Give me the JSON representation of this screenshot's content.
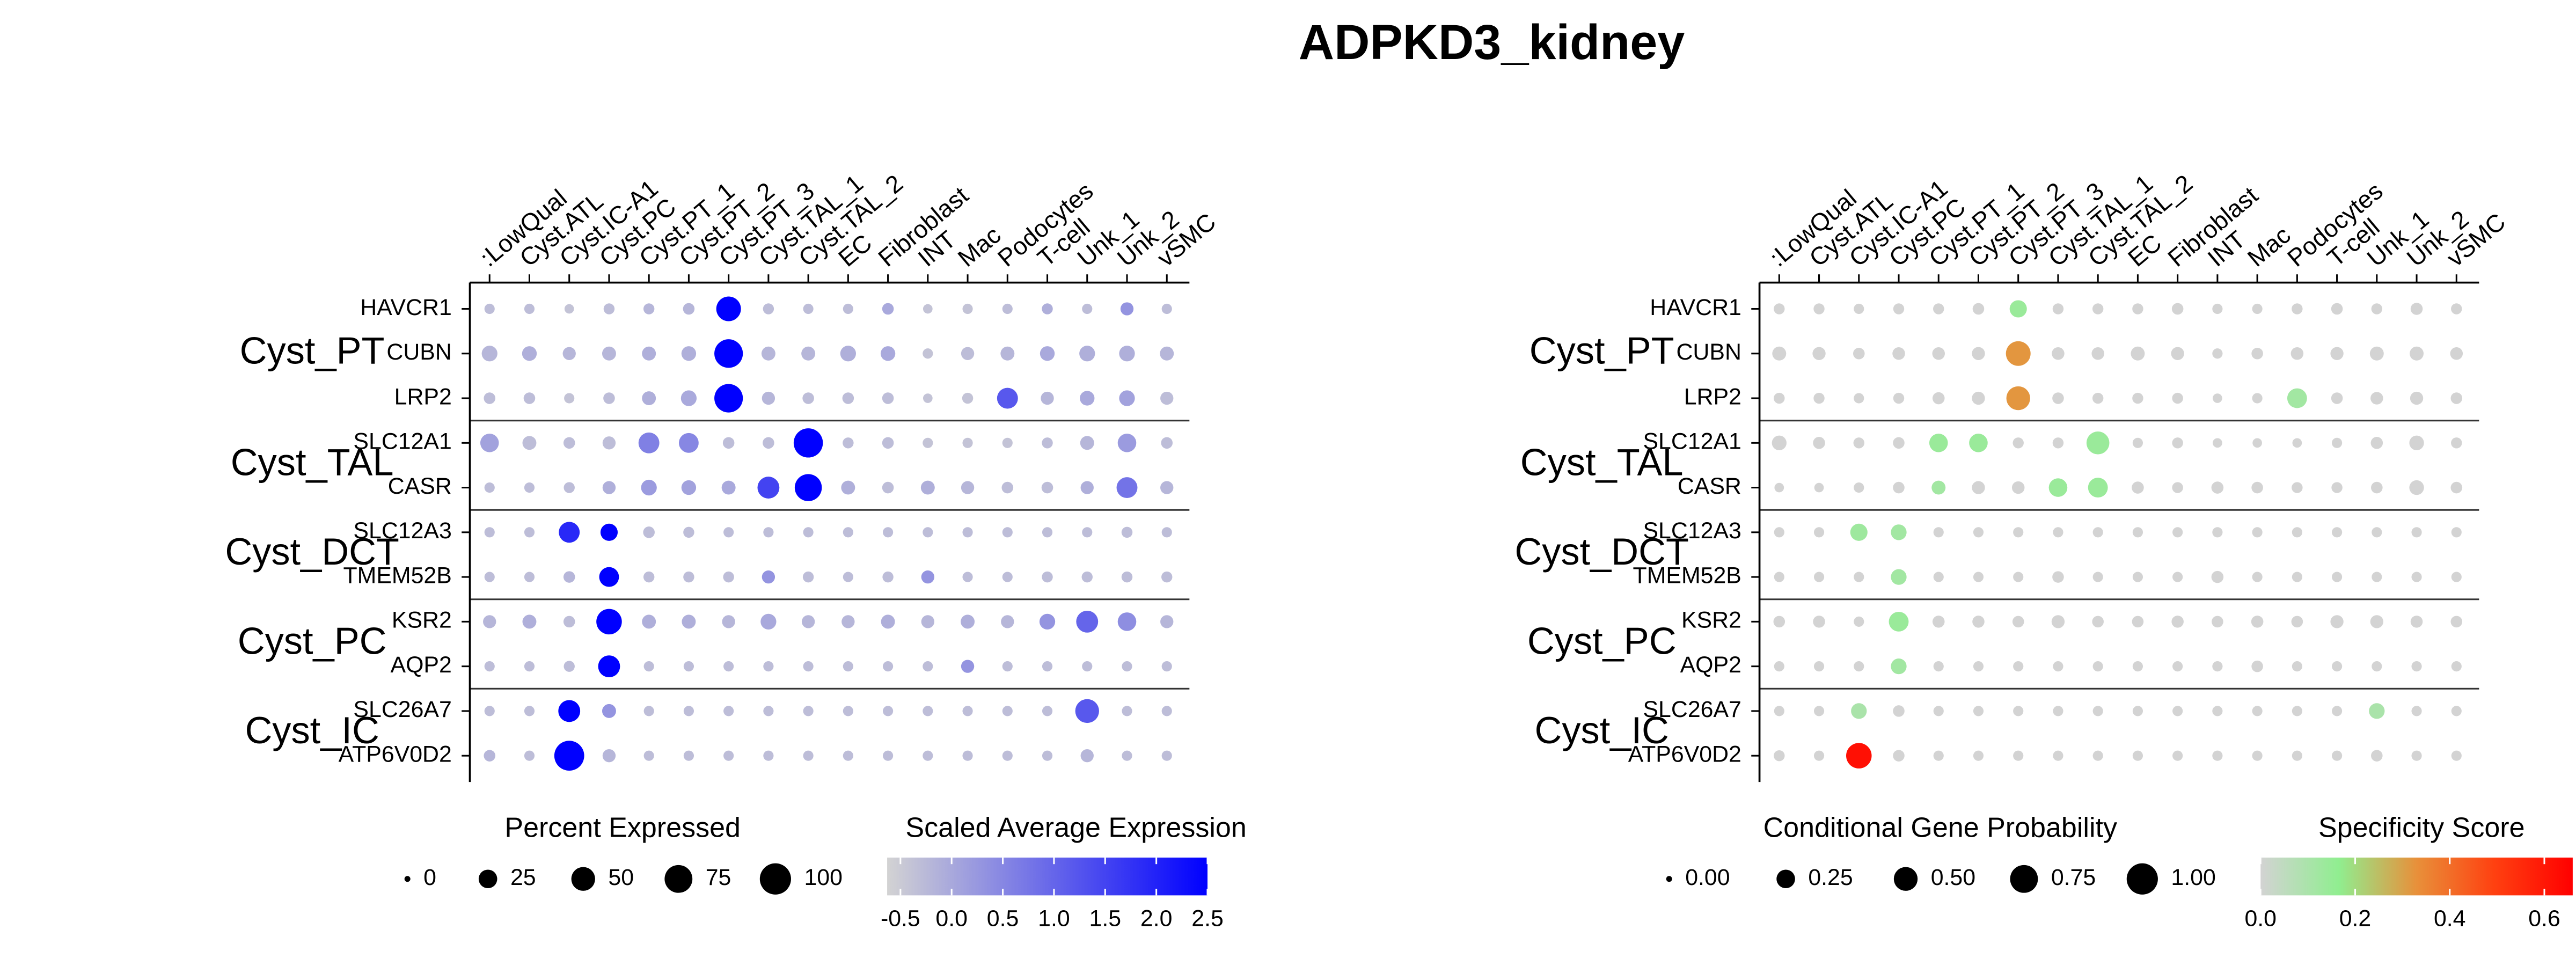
{
  "title": "ADPKD3_kidney",
  "chart_data": [
    {
      "type": "dot",
      "categories": [
        ":LowQual",
        "Cyst.ATL",
        "Cyst.IC-A1",
        "Cyst.PC",
        "Cyst.PT_1",
        "Cyst.PT_2",
        "Cyst.PT_3",
        "Cyst.TAL_1",
        "Cyst.TAL_2",
        "EC",
        "Fibroblast",
        "INT",
        "Mac",
        "Podocytes",
        "T-cell",
        "Unk_1",
        "Unk_2",
        "vSMC"
      ],
      "groups": [
        {
          "label": "Cyst_PT",
          "genes": [
            "HAVCR1",
            "CUBN",
            "LRP2"
          ]
        },
        {
          "label": "Cyst_TAL",
          "genes": [
            "SLC12A1",
            "CASR"
          ]
        },
        {
          "label": "Cyst_DCT",
          "genes": [
            "SLC12A3",
            "TMEM52B"
          ]
        },
        {
          "label": "Cyst_PC",
          "genes": [
            "KSR2",
            "AQP2"
          ]
        },
        {
          "label": "Cyst_IC",
          "genes": [
            "SLC26A7",
            "ATP6V0D2"
          ]
        }
      ],
      "size": {
        "title": "Percent Expressed",
        "lim": [
          0,
          100
        ],
        "ticks": [
          0,
          25,
          50,
          75,
          100
        ],
        "values": [
          [
            3,
            3,
            2,
            4,
            4,
            5,
            55,
            4,
            3,
            3,
            5,
            2,
            3,
            3,
            4,
            3,
            8,
            3
          ],
          [
            15,
            12,
            8,
            10,
            10,
            12,
            80,
            10,
            10,
            15,
            12,
            3,
            8,
            10,
            12,
            15,
            15,
            10
          ],
          [
            5,
            5,
            3,
            5,
            10,
            15,
            80,
            8,
            5,
            5,
            5,
            2,
            4,
            35,
            8,
            12,
            15,
            8
          ],
          [
            25,
            10,
            5,
            8,
            35,
            30,
            5,
            5,
            85,
            4,
            5,
            3,
            3,
            3,
            4,
            10,
            25,
            5
          ],
          [
            3,
            3,
            4,
            8,
            15,
            12,
            10,
            40,
            70,
            10,
            5,
            10,
            8,
            5,
            5,
            8,
            35,
            8
          ],
          [
            3,
            3,
            35,
            20,
            5,
            4,
            3,
            3,
            3,
            3,
            3,
            3,
            3,
            3,
            3,
            3,
            4,
            3
          ],
          [
            3,
            3,
            5,
            30,
            4,
            4,
            4,
            8,
            4,
            3,
            4,
            8,
            3,
            3,
            4,
            4,
            4,
            4
          ],
          [
            8,
            10,
            5,
            60,
            10,
            10,
            8,
            15,
            8,
            8,
            10,
            8,
            10,
            8,
            15,
            40,
            25,
            8
          ],
          [
            3,
            3,
            4,
            40,
            3,
            3,
            3,
            3,
            3,
            3,
            3,
            3,
            8,
            3,
            3,
            3,
            3,
            3
          ],
          [
            3,
            3,
            40,
            10,
            3,
            3,
            3,
            3,
            3,
            3,
            3,
            3,
            3,
            3,
            3,
            50,
            3,
            3
          ],
          [
            5,
            3,
            90,
            8,
            3,
            3,
            3,
            3,
            3,
            3,
            3,
            3,
            3,
            3,
            3,
            8,
            3,
            3
          ]
        ]
      },
      "color": {
        "title": "Scaled Average Expression",
        "lim": [
          -0.63,
          2.5
        ],
        "colors": [
          "#d3d3d3",
          "#0000ff"
        ],
        "ticks": [
          -0.5,
          {
            "value": 0,
            "label": "0.0"
          },
          0.5,
          {
            "value": 1,
            "label": "1.0"
          },
          1.5,
          {
            "value": 2,
            "label": "2.0"
          },
          2.5
        ],
        "values": [
          [
            -0.3,
            -0.3,
            -0.4,
            -0.3,
            -0.2,
            -0.2,
            2.5,
            -0.3,
            -0.3,
            -0.3,
            0,
            -0.4,
            -0.4,
            -0.3,
            -0.1,
            -0.3,
            0.3,
            -0.3
          ],
          [
            -0.2,
            -0.1,
            -0.2,
            -0.2,
            -0.1,
            -0.1,
            2.5,
            -0.2,
            -0.2,
            -0.1,
            0,
            -0.4,
            -0.3,
            -0.2,
            0,
            -0.1,
            -0.1,
            -0.2
          ],
          [
            -0.3,
            -0.3,
            -0.4,
            -0.3,
            -0.1,
            0,
            2.5,
            -0.2,
            -0.3,
            -0.3,
            -0.3,
            -0.4,
            -0.4,
            1.2,
            -0.2,
            0,
            0.1,
            -0.3
          ],
          [
            0.1,
            -0.3,
            -0.3,
            -0.3,
            0.6,
            0.5,
            -0.3,
            -0.3,
            2.5,
            -0.3,
            -0.3,
            -0.4,
            -0.4,
            -0.4,
            -0.3,
            -0.2,
            0.2,
            -0.3
          ],
          [
            -0.3,
            -0.3,
            -0.3,
            -0.1,
            0.2,
            0.1,
            0,
            1.5,
            2.5,
            -0.1,
            -0.3,
            -0.1,
            -0.2,
            -0.3,
            -0.3,
            -0.1,
            0.8,
            -0.2
          ],
          [
            -0.3,
            -0.3,
            1.9,
            2.5,
            -0.3,
            -0.3,
            -0.3,
            -0.3,
            -0.3,
            -0.3,
            -0.3,
            -0.3,
            -0.3,
            -0.3,
            -0.3,
            -0.3,
            -0.3,
            -0.3
          ],
          [
            -0.3,
            -0.3,
            -0.2,
            2.5,
            -0.3,
            -0.3,
            -0.3,
            0.3,
            -0.3,
            -0.3,
            -0.3,
            0.3,
            -0.3,
            -0.3,
            -0.3,
            -0.3,
            -0.3,
            -0.3
          ],
          [
            -0.2,
            -0.1,
            -0.3,
            2.5,
            -0.1,
            -0.1,
            -0.2,
            0,
            -0.2,
            -0.2,
            -0.1,
            -0.2,
            -0.1,
            -0.2,
            0.3,
            1.0,
            0.4,
            -0.2
          ],
          [
            -0.3,
            -0.3,
            -0.3,
            2.5,
            -0.3,
            -0.3,
            -0.3,
            -0.3,
            -0.3,
            -0.3,
            -0.3,
            -0.3,
            0.3,
            -0.3,
            -0.3,
            -0.3,
            -0.3,
            -0.3
          ],
          [
            -0.3,
            -0.3,
            2.5,
            0.3,
            -0.3,
            -0.3,
            -0.3,
            -0.3,
            -0.3,
            -0.3,
            -0.3,
            -0.3,
            -0.3,
            -0.3,
            -0.3,
            1.2,
            -0.3,
            -0.3
          ],
          [
            -0.2,
            -0.3,
            2.5,
            -0.2,
            -0.3,
            -0.3,
            -0.3,
            -0.3,
            -0.3,
            -0.3,
            -0.3,
            -0.3,
            -0.3,
            -0.3,
            -0.3,
            -0.2,
            -0.3,
            -0.3
          ]
        ]
      }
    },
    {
      "type": "dot",
      "categories": [
        ":LowQual",
        "Cyst.ATL",
        "Cyst.IC-A1",
        "Cyst.PC",
        "Cyst.PT_1",
        "Cyst.PT_2",
        "Cyst.PT_3",
        "Cyst.TAL_1",
        "Cyst.TAL_2",
        "EC",
        "Fibroblast",
        "INT",
        "Mac",
        "Podocytes",
        "T-cell",
        "Unk_1",
        "Unk_2",
        "vSMC"
      ],
      "groups": [
        {
          "label": "Cyst_PT",
          "genes": [
            "HAVCR1",
            "CUBN",
            "LRP2"
          ]
        },
        {
          "label": "Cyst_TAL",
          "genes": [
            "SLC12A1",
            "CASR"
          ]
        },
        {
          "label": "Cyst_DCT",
          "genes": [
            "SLC12A3",
            "TMEM52B"
          ]
        },
        {
          "label": "Cyst_PC",
          "genes": [
            "KSR2",
            "AQP2"
          ]
        },
        {
          "label": "Cyst_IC",
          "genes": [
            "SLC26A7",
            "ATP6V0D2"
          ]
        }
      ],
      "size": {
        "title": "Conditional Gene Probability",
        "lim": [
          0,
          1
        ],
        "ticks": [
          {
            "value": 0,
            "label": "0.00"
          },
          {
            "value": 0.25,
            "label": "0.25"
          },
          {
            "value": 0.5,
            "label": "0.50"
          },
          {
            "value": 0.75,
            "label": "0.75"
          },
          {
            "value": 1,
            "label": "1.00"
          }
        ],
        "values": [
          [
            0.04,
            0.04,
            0.03,
            0.04,
            0.04,
            0.05,
            0.2,
            0.04,
            0.04,
            0.04,
            0.05,
            0.03,
            0.03,
            0.04,
            0.05,
            0.04,
            0.06,
            0.04
          ],
          [
            0.1,
            0.08,
            0.05,
            0.07,
            0.07,
            0.08,
            0.55,
            0.07,
            0.07,
            0.1,
            0.08,
            0.03,
            0.05,
            0.07,
            0.08,
            0.1,
            0.1,
            0.07
          ],
          [
            0.04,
            0.04,
            0.03,
            0.04,
            0.06,
            0.08,
            0.5,
            0.05,
            0.04,
            0.04,
            0.04,
            0.02,
            0.03,
            0.3,
            0.05,
            0.07,
            0.08,
            0.05
          ],
          [
            0.12,
            0.06,
            0.04,
            0.05,
            0.25,
            0.25,
            0.04,
            0.04,
            0.45,
            0.03,
            0.04,
            0.02,
            0.02,
            0.02,
            0.03,
            0.06,
            0.12,
            0.04
          ],
          [
            0.02,
            0.02,
            0.03,
            0.05,
            0.1,
            0.08,
            0.07,
            0.25,
            0.3,
            0.06,
            0.04,
            0.06,
            0.05,
            0.04,
            0.04,
            0.05,
            0.12,
            0.05
          ],
          [
            0.03,
            0.03,
            0.2,
            0.15,
            0.03,
            0.03,
            0.03,
            0.03,
            0.03,
            0.03,
            0.03,
            0.03,
            0.03,
            0.03,
            0.03,
            0.03,
            0.03,
            0.03
          ],
          [
            0.03,
            0.03,
            0.03,
            0.15,
            0.03,
            0.03,
            0.03,
            0.05,
            0.03,
            0.03,
            0.03,
            0.06,
            0.03,
            0.03,
            0.03,
            0.03,
            0.03,
            0.03
          ],
          [
            0.05,
            0.06,
            0.03,
            0.3,
            0.06,
            0.06,
            0.05,
            0.08,
            0.05,
            0.05,
            0.06,
            0.05,
            0.06,
            0.05,
            0.08,
            0.08,
            0.06,
            0.05
          ],
          [
            0.03,
            0.03,
            0.03,
            0.15,
            0.03,
            0.03,
            0.03,
            0.03,
            0.03,
            0.03,
            0.03,
            0.03,
            0.05,
            0.03,
            0.03,
            0.03,
            0.03,
            0.03
          ],
          [
            0.03,
            0.03,
            0.15,
            0.05,
            0.03,
            0.03,
            0.03,
            0.03,
            0.03,
            0.03,
            0.03,
            0.03,
            0.03,
            0.03,
            0.03,
            0.15,
            0.03,
            0.03
          ],
          [
            0.04,
            0.03,
            0.6,
            0.05,
            0.03,
            0.03,
            0.03,
            0.03,
            0.03,
            0.03,
            0.03,
            0.03,
            0.03,
            0.03,
            0.03,
            0.05,
            0.03,
            0.03
          ]
        ]
      },
      "color": {
        "title": "Specificity Score",
        "lim": [
          0,
          0.66
        ],
        "colors": [
          "#d3d3d3",
          "#90ee90",
          "#e8903a",
          "#ff4010",
          "#ff0000"
        ],
        "ticks": [
          {
            "value": 0,
            "label": "0.0"
          },
          0.2,
          0.4,
          0.6
        ],
        "values": [
          [
            0,
            0,
            0,
            0,
            0,
            0,
            0.14,
            0,
            0,
            0,
            0,
            0,
            0,
            0,
            0,
            0,
            0,
            0
          ],
          [
            0,
            0,
            0,
            0,
            0,
            0,
            0.32,
            0,
            0,
            0,
            0,
            0,
            0,
            0,
            0,
            0,
            0,
            0
          ],
          [
            0,
            0,
            0,
            0,
            0,
            0,
            0.32,
            0,
            0,
            0,
            0,
            0,
            0,
            0.12,
            0,
            0,
            0,
            0
          ],
          [
            0,
            0,
            0,
            0,
            0.14,
            0.14,
            0,
            0,
            0.14,
            0,
            0,
            0,
            0,
            0,
            0,
            0,
            0,
            0
          ],
          [
            0,
            0,
            0,
            0,
            0.12,
            0,
            0,
            0.14,
            0.14,
            0,
            0,
            0,
            0,
            0,
            0,
            0,
            0,
            0
          ],
          [
            0,
            0,
            0.13,
            0.12,
            0,
            0,
            0,
            0,
            0,
            0,
            0,
            0,
            0,
            0,
            0,
            0,
            0,
            0
          ],
          [
            0,
            0,
            0,
            0.12,
            0,
            0,
            0,
            0,
            0,
            0,
            0,
            0,
            0,
            0,
            0,
            0,
            0,
            0
          ],
          [
            0,
            0,
            0,
            0.14,
            0,
            0,
            0,
            0,
            0,
            0,
            0,
            0,
            0,
            0,
            0,
            0,
            0,
            0
          ],
          [
            0,
            0,
            0,
            0.12,
            0,
            0,
            0,
            0,
            0,
            0,
            0,
            0,
            0,
            0,
            0,
            0,
            0,
            0
          ],
          [
            0,
            0,
            0.1,
            0,
            0,
            0,
            0,
            0,
            0,
            0,
            0,
            0,
            0,
            0,
            0,
            0.1,
            0,
            0
          ],
          [
            0,
            0,
            0.62,
            0,
            0,
            0,
            0,
            0,
            0,
            0,
            0,
            0,
            0,
            0,
            0,
            0,
            0,
            0
          ]
        ]
      }
    }
  ]
}
